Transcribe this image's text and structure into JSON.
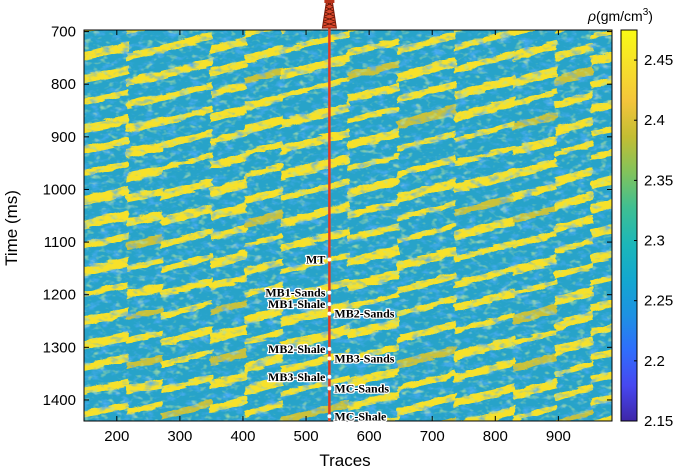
{
  "chart_data": {
    "type": "heatmap",
    "xlabel": "Traces",
    "ylabel": "Time (ms)",
    "xlim": [
      148,
      985
    ],
    "ylim": [
      1440,
      697
    ],
    "x_ticks": [
      "200",
      "300",
      "400",
      "500",
      "600",
      "700",
      "800",
      "900"
    ],
    "y_ticks": [
      "700",
      "800",
      "900",
      "1000",
      "1100",
      "1200",
      "1300",
      "1400"
    ],
    "colorbar": {
      "label_prefix": "ρ",
      "label_unit": "(gm/cm",
      "label_exp": "3",
      "label_close": ")",
      "range": [
        2.15,
        2.475
      ],
      "ticks": [
        "2.15",
        "2.2",
        "2.25",
        "2.3",
        "2.35",
        "2.4",
        "2.45"
      ],
      "colormap": [
        "#3e26a8",
        "#4748f0",
        "#2f6efc",
        "#1d92e2",
        "#13a8cf",
        "#1cb7b8",
        "#3fbf92",
        "#82c35b",
        "#c3bd33",
        "#f4c53b",
        "#f7e02a",
        "#f9fb15"
      ]
    },
    "well": {
      "trace": 537,
      "color": "#e23a22",
      "markers": [
        {
          "label": "MT",
          "time": 1133,
          "side": "left"
        },
        {
          "label": "MB1-Sands",
          "time": 1196,
          "side": "left"
        },
        {
          "label": "MB1-Shale",
          "time": 1218,
          "side": "left"
        },
        {
          "label": "MB2-Sands",
          "time": 1236,
          "side": "right"
        },
        {
          "label": "MB2-Shale",
          "time": 1303,
          "side": "left"
        },
        {
          "label": "MB3-Sands",
          "time": 1321,
          "side": "right"
        },
        {
          "label": "MB3-Shale",
          "time": 1356,
          "side": "left"
        },
        {
          "label": "MC-Sands",
          "time": 1378,
          "side": "right"
        },
        {
          "label": "MC-Shale",
          "time": 1431,
          "side": "right"
        }
      ]
    },
    "grid": false
  }
}
